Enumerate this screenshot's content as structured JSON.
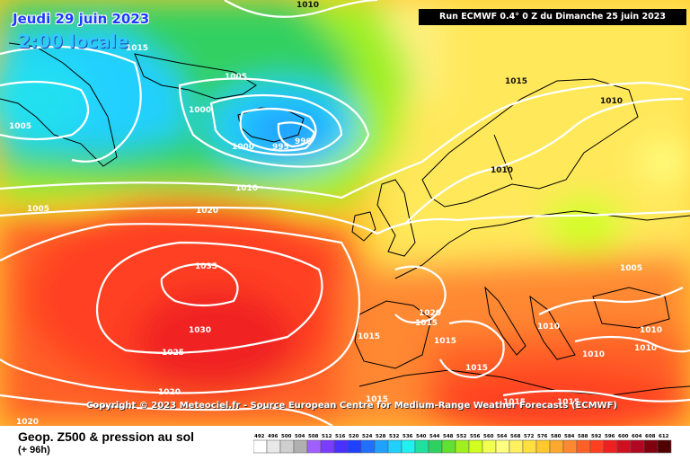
{
  "header": {
    "date": "Jeudi 29 juin 2023",
    "local_time": "2:00 locale",
    "run_info": "Run ECMWF 0.4° 0 Z du Dimanche 25 juin 2023"
  },
  "copyright": "Copyright © 2023 Meteociel.fr - Source European Centre for Medium-Range Weather Forecasts (ECMWF)",
  "footer": {
    "title": "Geop. Z500 & pression au sol",
    "subtitle": "(+ 96h)"
  },
  "legend": {
    "values": [
      "492",
      "496",
      "500",
      "504",
      "508",
      "512",
      "516",
      "520",
      "524",
      "528",
      "532",
      "536",
      "540",
      "544",
      "548",
      "552",
      "556",
      "560",
      "564",
      "568",
      "572",
      "576",
      "580",
      "584",
      "588",
      "592",
      "596",
      "600",
      "604",
      "608",
      "612"
    ],
    "colors": [
      "#ffffff",
      "#e8e8e8",
      "#cfcfcf",
      "#b0b0b0",
      "#a060ff",
      "#7a3cff",
      "#4a30ff",
      "#2040ff",
      "#2070ff",
      "#20a0ff",
      "#20d0ff",
      "#20f0f0",
      "#20e0a0",
      "#30d060",
      "#60e030",
      "#a0f020",
      "#d0ff20",
      "#f0ff50",
      "#ffff80",
      "#fff060",
      "#ffe040",
      "#ffc830",
      "#ffa830",
      "#ff8830",
      "#ff6028",
      "#ff4020",
      "#f02020",
      "#d01020",
      "#b00820",
      "#800010",
      "#500000"
    ]
  },
  "map": {
    "pressure_centers": [
      {
        "label": "990",
        "type": "low"
      },
      {
        "label": "995",
        "type": "low"
      },
      {
        "label": "1035",
        "type": "high"
      }
    ],
    "isobar_labels": [
      "1010",
      "1015",
      "1005",
      "1005",
      "1000",
      "1000",
      "995",
      "990",
      "1005",
      "1010",
      "1020",
      "1035",
      "1030",
      "1025",
      "1020",
      "1015",
      "1010",
      "1010",
      "1005",
      "1020",
      "1015",
      "1015",
      "1015",
      "1010",
      "1010",
      "1010",
      "1015",
      "1015",
      "1010",
      "1015",
      "1015",
      "1020"
    ]
  }
}
